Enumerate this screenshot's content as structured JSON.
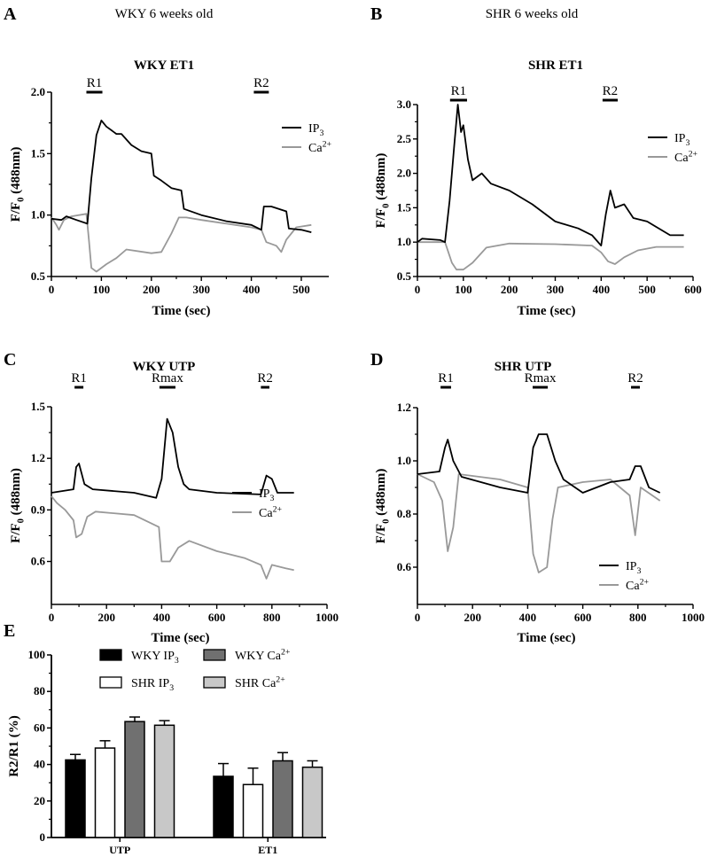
{
  "header": {
    "left": "WKY 6 weeks old",
    "right": "SHR 6 weeks old"
  },
  "panel_letters": [
    "A",
    "B",
    "C",
    "D",
    "E"
  ],
  "chart_data": [
    {
      "id": "A",
      "type": "line",
      "title": "WKY ET1",
      "xlabel": "Time (sec)",
      "ylabel": {
        "base": "F/F",
        "sub": "0",
        "rest": " (488nm)"
      },
      "xlim": [
        0,
        555
      ],
      "ylim": [
        0.5,
        2.0
      ],
      "xticks": [
        0,
        100,
        200,
        300,
        400,
        500
      ],
      "yticks": [
        "0.5",
        "1.0",
        "1.5",
        "2.0"
      ],
      "stimuli": [
        {
          "label": "R1",
          "from": 70,
          "to": 102
        },
        {
          "label": "R2",
          "from": 405,
          "to": 435
        }
      ],
      "legend": {
        "placement": "top-right"
      },
      "series": [
        {
          "name": {
            "base": "IP",
            "sub": "3"
          },
          "color": "#000000",
          "points": [
            [
              0,
              0.97
            ],
            [
              20,
              0.96
            ],
            [
              30,
              0.99
            ],
            [
              50,
              0.96
            ],
            [
              72,
              0.93
            ],
            [
              80,
              1.3
            ],
            [
              90,
              1.65
            ],
            [
              100,
              1.77
            ],
            [
              110,
              1.72
            ],
            [
              130,
              1.66
            ],
            [
              140,
              1.66
            ],
            [
              160,
              1.57
            ],
            [
              180,
              1.52
            ],
            [
              200,
              1.5
            ],
            [
              205,
              1.32
            ],
            [
              220,
              1.28
            ],
            [
              240,
              1.22
            ],
            [
              260,
              1.2
            ],
            [
              265,
              1.05
            ],
            [
              300,
              1.0
            ],
            [
              350,
              0.95
            ],
            [
              400,
              0.92
            ],
            [
              420,
              0.88
            ],
            [
              425,
              1.07
            ],
            [
              440,
              1.07
            ],
            [
              470,
              1.03
            ],
            [
              475,
              0.89
            ],
            [
              500,
              0.88
            ],
            [
              520,
              0.86
            ]
          ]
        },
        {
          "name": {
            "base": "Ca",
            "sup": "2+"
          },
          "color": "#999999",
          "points": [
            [
              0,
              0.98
            ],
            [
              10,
              0.92
            ],
            [
              15,
              0.88
            ],
            [
              25,
              0.96
            ],
            [
              40,
              0.99
            ],
            [
              70,
              1.01
            ],
            [
              75,
              0.8
            ],
            [
              80,
              0.57
            ],
            [
              90,
              0.54
            ],
            [
              110,
              0.6
            ],
            [
              130,
              0.65
            ],
            [
              150,
              0.72
            ],
            [
              200,
              0.69
            ],
            [
              220,
              0.7
            ],
            [
              240,
              0.85
            ],
            [
              255,
              0.98
            ],
            [
              270,
              0.98
            ],
            [
              300,
              0.96
            ],
            [
              400,
              0.9
            ],
            [
              420,
              0.88
            ],
            [
              430,
              0.78
            ],
            [
              450,
              0.75
            ],
            [
              460,
              0.7
            ],
            [
              470,
              0.8
            ],
            [
              490,
              0.9
            ],
            [
              520,
              0.92
            ]
          ]
        }
      ]
    },
    {
      "id": "B",
      "type": "line",
      "title": "SHR ET1",
      "xlabel": "Time (sec)",
      "ylabel": {
        "base": "F/F",
        "sub": "0",
        "rest": " (488nm)"
      },
      "xlim": [
        0,
        600
      ],
      "ylim": [
        0.5,
        3.0
      ],
      "xticks": [
        0,
        100,
        200,
        300,
        400,
        500,
        600
      ],
      "yticks": [
        "0.5",
        "1.0",
        "1.5",
        "2.0",
        "2.5",
        "3.0"
      ],
      "stimuli": [
        {
          "label": "R1",
          "from": 71,
          "to": 108
        },
        {
          "label": "R2",
          "from": 403,
          "to": 436
        }
      ],
      "legend": {
        "placement": "top-right"
      },
      "series": [
        {
          "name": {
            "base": "IP",
            "sub": "3"
          },
          "color": "#000000",
          "points": [
            [
              0,
              1.0
            ],
            [
              10,
              1.05
            ],
            [
              50,
              1.03
            ],
            [
              60,
              1.0
            ],
            [
              70,
              1.6
            ],
            [
              80,
              2.4
            ],
            [
              88,
              3.0
            ],
            [
              95,
              2.6
            ],
            [
              100,
              2.7
            ],
            [
              110,
              2.2
            ],
            [
              120,
              1.9
            ],
            [
              140,
              2.0
            ],
            [
              160,
              1.85
            ],
            [
              200,
              1.75
            ],
            [
              250,
              1.55
            ],
            [
              300,
              1.3
            ],
            [
              350,
              1.2
            ],
            [
              380,
              1.1
            ],
            [
              400,
              0.95
            ],
            [
              410,
              1.4
            ],
            [
              420,
              1.75
            ],
            [
              430,
              1.5
            ],
            [
              450,
              1.55
            ],
            [
              470,
              1.35
            ],
            [
              500,
              1.3
            ],
            [
              550,
              1.1
            ],
            [
              580,
              1.1
            ]
          ]
        },
        {
          "name": {
            "base": "Ca",
            "sup": "2+"
          },
          "color": "#999999",
          "points": [
            [
              0,
              1.0
            ],
            [
              60,
              1.0
            ],
            [
              75,
              0.7
            ],
            [
              85,
              0.6
            ],
            [
              100,
              0.6
            ],
            [
              120,
              0.7
            ],
            [
              150,
              0.92
            ],
            [
              200,
              0.98
            ],
            [
              300,
              0.97
            ],
            [
              380,
              0.95
            ],
            [
              400,
              0.85
            ],
            [
              415,
              0.72
            ],
            [
              430,
              0.68
            ],
            [
              450,
              0.78
            ],
            [
              480,
              0.88
            ],
            [
              520,
              0.93
            ],
            [
              580,
              0.93
            ]
          ]
        }
      ]
    },
    {
      "id": "C",
      "type": "line",
      "title": "WKY UTP",
      "xlabel": "Time (sec)",
      "ylabel": {
        "base": "F/F",
        "sub": "0",
        "rest": " (488nm)"
      },
      "xlim": [
        0,
        1000
      ],
      "ylim": [
        0.35,
        1.5
      ],
      "xticks": [
        0,
        200,
        400,
        600,
        800,
        1000
      ],
      "yticks": [
        "0.6",
        "0.9",
        "1.2",
        "1.5"
      ],
      "stimuli": [
        {
          "label": "R1",
          "from": 84,
          "to": 116
        },
        {
          "label": "Rmax",
          "from": 392,
          "to": 450
        },
        {
          "label": "R2",
          "from": 760,
          "to": 791
        }
      ],
      "legend": {
        "placement": "bottom-right"
      },
      "series": [
        {
          "name": {
            "base": "IP",
            "sub": "3"
          },
          "color": "#000000",
          "points": [
            [
              0,
              1.0
            ],
            [
              80,
              1.02
            ],
            [
              90,
              1.15
            ],
            [
              100,
              1.17
            ],
            [
              120,
              1.05
            ],
            [
              150,
              1.02
            ],
            [
              300,
              1.0
            ],
            [
              380,
              0.97
            ],
            [
              400,
              1.08
            ],
            [
              420,
              1.43
            ],
            [
              440,
              1.35
            ],
            [
              460,
              1.15
            ],
            [
              480,
              1.05
            ],
            [
              500,
              1.02
            ],
            [
              600,
              1.0
            ],
            [
              760,
              0.99
            ],
            [
              780,
              1.1
            ],
            [
              800,
              1.08
            ],
            [
              820,
              1.0
            ],
            [
              880,
              1.0
            ]
          ]
        },
        {
          "name": {
            "base": "Ca",
            "sup": "2+"
          },
          "color": "#999999",
          "points": [
            [
              0,
              0.98
            ],
            [
              20,
              0.94
            ],
            [
              50,
              0.9
            ],
            [
              80,
              0.84
            ],
            [
              90,
              0.74
            ],
            [
              110,
              0.76
            ],
            [
              130,
              0.86
            ],
            [
              160,
              0.89
            ],
            [
              300,
              0.87
            ],
            [
              390,
              0.8
            ],
            [
              400,
              0.6
            ],
            [
              430,
              0.6
            ],
            [
              460,
              0.68
            ],
            [
              500,
              0.72
            ],
            [
              600,
              0.66
            ],
            [
              700,
              0.62
            ],
            [
              760,
              0.58
            ],
            [
              780,
              0.5
            ],
            [
              800,
              0.58
            ],
            [
              850,
              0.56
            ],
            [
              880,
              0.55
            ]
          ]
        }
      ]
    },
    {
      "id": "D",
      "type": "line",
      "title": "SHR UTP",
      "xlabel": "Time (sec)",
      "ylabel": {
        "base": "F/F",
        "sub": "0",
        "rest": " (488nm)"
      },
      "xlim": [
        0,
        1000
      ],
      "ylim": [
        0.46,
        1.2
      ],
      "xticks": [
        0,
        200,
        400,
        600,
        800,
        1000
      ],
      "yticks": [
        "0.6",
        "0.8",
        "1.0",
        "1.2"
      ],
      "stimuli": [
        {
          "label": "R1",
          "from": 84,
          "to": 122
        },
        {
          "label": "Rmax",
          "from": 418,
          "to": 473
        },
        {
          "label": "R2",
          "from": 775,
          "to": 807
        }
      ],
      "legend": {
        "placement": "bottom-right"
      },
      "series": [
        {
          "name": {
            "base": "IP",
            "sub": "3"
          },
          "color": "#000000",
          "points": [
            [
              0,
              0.95
            ],
            [
              80,
              0.96
            ],
            [
              100,
              1.05
            ],
            [
              110,
              1.08
            ],
            [
              130,
              1.0
            ],
            [
              160,
              0.94
            ],
            [
              300,
              0.9
            ],
            [
              400,
              0.88
            ],
            [
              420,
              1.05
            ],
            [
              440,
              1.1
            ],
            [
              470,
              1.1
            ],
            [
              500,
              1.0
            ],
            [
              530,
              0.93
            ],
            [
              600,
              0.88
            ],
            [
              700,
              0.92
            ],
            [
              770,
              0.93
            ],
            [
              790,
              0.98
            ],
            [
              810,
              0.98
            ],
            [
              840,
              0.9
            ],
            [
              880,
              0.88
            ]
          ]
        },
        {
          "name": {
            "base": "Ca",
            "sup": "2+"
          },
          "color": "#999999",
          "points": [
            [
              0,
              0.95
            ],
            [
              60,
              0.92
            ],
            [
              90,
              0.85
            ],
            [
              110,
              0.66
            ],
            [
              130,
              0.75
            ],
            [
              150,
              0.95
            ],
            [
              300,
              0.93
            ],
            [
              400,
              0.9
            ],
            [
              420,
              0.65
            ],
            [
              440,
              0.58
            ],
            [
              470,
              0.6
            ],
            [
              490,
              0.78
            ],
            [
              510,
              0.9
            ],
            [
              600,
              0.92
            ],
            [
              700,
              0.93
            ],
            [
              770,
              0.87
            ],
            [
              790,
              0.72
            ],
            [
              810,
              0.9
            ],
            [
              880,
              0.85
            ]
          ]
        }
      ]
    },
    {
      "id": "E",
      "type": "bar",
      "ylabel": "R2/R1 (%)",
      "ylim": [
        0,
        100
      ],
      "yticks": [
        "0",
        "20",
        "40",
        "60",
        "80",
        "100"
      ],
      "categories": [
        "UTP",
        "ET1"
      ],
      "legend": {
        "placement": "top"
      },
      "series": [
        {
          "name": {
            "base": "WKY IP",
            "sub": "3"
          },
          "color": "#000000",
          "values": [
            42.5,
            33.5
          ],
          "errors": [
            3,
            7
          ]
        },
        {
          "name": {
            "base": "SHR  IP",
            "sub": "3"
          },
          "color": "#ffffff",
          "values": [
            49,
            29
          ],
          "errors": [
            4,
            9
          ]
        },
        {
          "name": {
            "base": "WKY Ca",
            "sup": "2+"
          },
          "color": "#707070",
          "values": [
            63.5,
            42
          ],
          "errors": [
            2.5,
            4.5
          ]
        },
        {
          "name": {
            "base": "SHR  Ca",
            "sup": "2+"
          },
          "color": "#c8c8c8",
          "values": [
            61.5,
            38.5
          ],
          "errors": [
            2.5,
            3.5
          ]
        }
      ]
    }
  ]
}
